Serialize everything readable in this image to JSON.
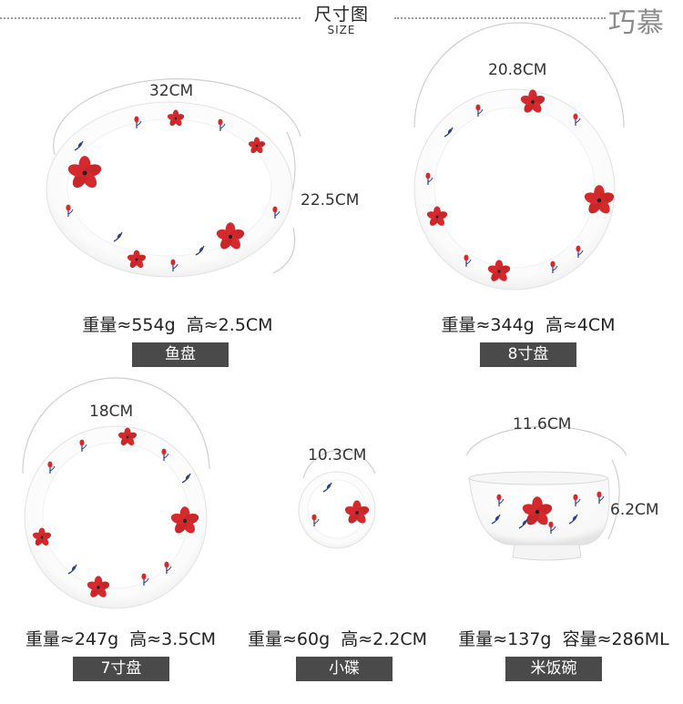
{
  "header": {
    "title": "尺寸图",
    "subtitle": "SIZE",
    "brand": "巧慕"
  },
  "products": [
    {
      "name": "鱼盘",
      "weight": "重量≈554g",
      "height": "高≈2.5CM",
      "dims": [
        "32CM",
        "22.5CM"
      ]
    },
    {
      "name": "8寸盘",
      "weight": "重量≈344g",
      "height": "高≈4CM",
      "dims": [
        "20.8CM"
      ]
    },
    {
      "name": "7寸盘",
      "weight": "重量≈247g",
      "height": "高≈3.5CM",
      "dims": [
        "18CM"
      ]
    },
    {
      "name": "小碟",
      "weight": "重量≈60g",
      "height": "高≈2.2CM",
      "dims": [
        "10.3CM"
      ]
    },
    {
      "name": "米饭碗",
      "weight": "重量≈137g",
      "height": "容量≈286ML",
      "dims": [
        "11.6CM",
        "6.2CM"
      ]
    }
  ],
  "colors": {
    "flower": "#d42a2e",
    "leaf": "#2b3f8c",
    "label_bg": "#4a4a4a",
    "porcelain": "#ffffff"
  }
}
